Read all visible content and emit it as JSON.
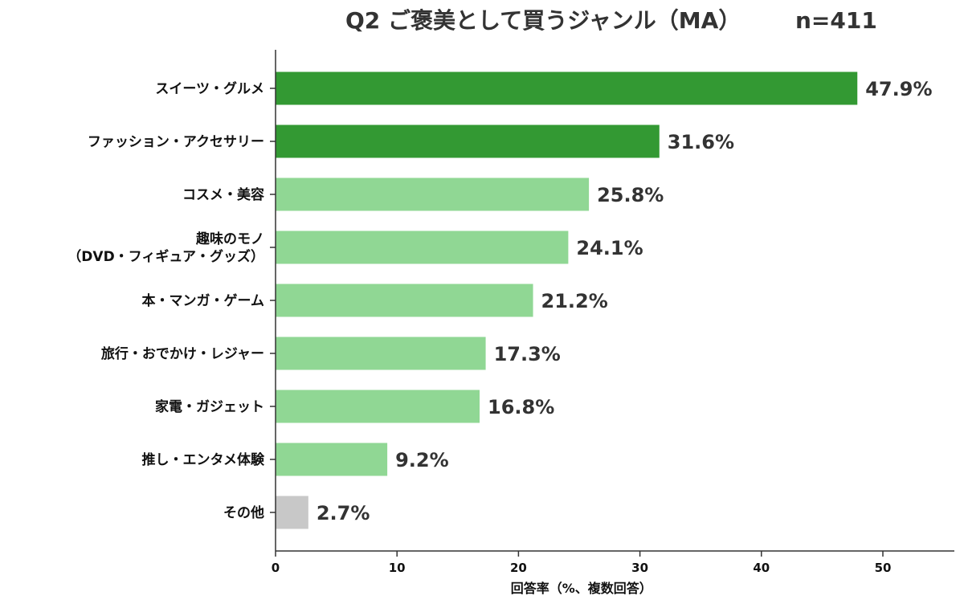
{
  "chart_data": {
    "type": "bar",
    "orientation": "horizontal",
    "title": "Q2 ご褒美として買うジャンル（MA）",
    "subtitle": "n=411",
    "xlabel": "回答率（%、複数回答）",
    "ylabel": "",
    "xlim": [
      0,
      55
    ],
    "xticks": [
      0,
      10,
      20,
      30,
      40,
      50
    ],
    "grid": false,
    "legend": "none",
    "value_format": "percent_1dp",
    "categories": [
      [
        "スイーツ・グルメ"
      ],
      [
        "ファッション・アクセサリー"
      ],
      [
        "コスメ・美容"
      ],
      [
        "趣味のモノ",
        "（DVD・フィギュア・グッズ）"
      ],
      [
        "本・マンガ・ゲーム"
      ],
      [
        "旅行・おでかけ・レジャー"
      ],
      [
        "家電・ガジェット"
      ],
      [
        "推し・エンタメ体験"
      ],
      [
        "その他"
      ]
    ],
    "values": [
      47.9,
      31.6,
      25.8,
      24.1,
      21.2,
      17.3,
      16.8,
      9.2,
      2.7
    ],
    "value_labels": [
      "47.9%",
      "31.6%",
      "25.8%",
      "24.1%",
      "21.2%",
      "17.3%",
      "16.8%",
      "9.2%",
      "2.7%"
    ],
    "bar_colors": [
      "#339933",
      "#339933",
      "#90d794",
      "#90d794",
      "#90d794",
      "#90d794",
      "#90d794",
      "#90d794",
      "#c8c8c8"
    ]
  }
}
